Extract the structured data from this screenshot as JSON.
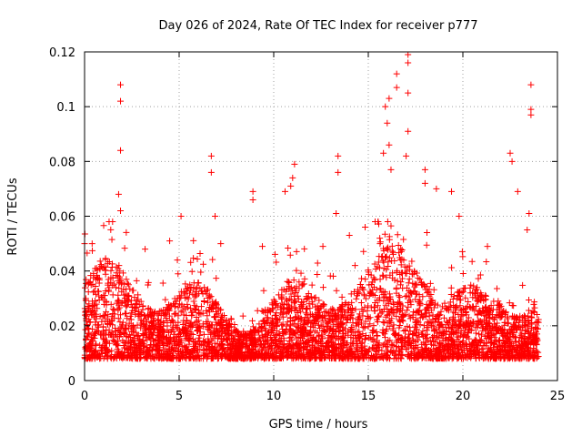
{
  "chart_data": {
    "type": "scatter",
    "title": "Day 026 of 2024, Rate Of TEC Index for receiver p777",
    "xlabel": "GPS time / hours",
    "ylabel": "ROTI / TECUs",
    "xlim": [
      0,
      25
    ],
    "ylim": [
      0,
      0.12
    ],
    "xticks": [
      "0",
      "5",
      "10",
      "15",
      "20",
      "25"
    ],
    "xtick_values": [
      0,
      5,
      10,
      15,
      20,
      25
    ],
    "yticks": [
      "0",
      "0.02",
      "0.04",
      "0.06",
      "0.08",
      "0.1",
      "0.12"
    ],
    "ytick_values": [
      0,
      0.02,
      0.04,
      0.06,
      0.08,
      0.1,
      0.12
    ],
    "grid": true,
    "marker": "+",
    "series_color": "#ff0000",
    "x_data_range": [
      0,
      24
    ],
    "typical_band": [
      0.008,
      0.035
    ],
    "outliers": [
      {
        "x": 1.9,
        "y": 0.108
      },
      {
        "x": 1.9,
        "y": 0.102
      },
      {
        "x": 1.9,
        "y": 0.084
      },
      {
        "x": 1.8,
        "y": 0.068
      },
      {
        "x": 1.9,
        "y": 0.062
      },
      {
        "x": 5.1,
        "y": 0.06
      },
      {
        "x": 6.7,
        "y": 0.082
      },
      {
        "x": 6.7,
        "y": 0.076
      },
      {
        "x": 6.9,
        "y": 0.06
      },
      {
        "x": 8.9,
        "y": 0.069
      },
      {
        "x": 8.9,
        "y": 0.066
      },
      {
        "x": 10.6,
        "y": 0.069
      },
      {
        "x": 11.1,
        "y": 0.079
      },
      {
        "x": 11.0,
        "y": 0.074
      },
      {
        "x": 10.9,
        "y": 0.071
      },
      {
        "x": 13.4,
        "y": 0.082
      },
      {
        "x": 13.4,
        "y": 0.076
      },
      {
        "x": 13.3,
        "y": 0.061
      },
      {
        "x": 15.9,
        "y": 0.1
      },
      {
        "x": 16.1,
        "y": 0.103
      },
      {
        "x": 16.0,
        "y": 0.094
      },
      {
        "x": 16.1,
        "y": 0.086
      },
      {
        "x": 16.2,
        "y": 0.077
      },
      {
        "x": 15.8,
        "y": 0.083
      },
      {
        "x": 16.5,
        "y": 0.112
      },
      {
        "x": 16.5,
        "y": 0.107
      },
      {
        "x": 17.1,
        "y": 0.119
      },
      {
        "x": 17.1,
        "y": 0.116
      },
      {
        "x": 17.1,
        "y": 0.105
      },
      {
        "x": 17.1,
        "y": 0.091
      },
      {
        "x": 17.0,
        "y": 0.082
      },
      {
        "x": 18.0,
        "y": 0.077
      },
      {
        "x": 18.0,
        "y": 0.072
      },
      {
        "x": 18.6,
        "y": 0.07
      },
      {
        "x": 19.4,
        "y": 0.069
      },
      {
        "x": 19.8,
        "y": 0.06
      },
      {
        "x": 22.5,
        "y": 0.083
      },
      {
        "x": 22.6,
        "y": 0.08
      },
      {
        "x": 22.9,
        "y": 0.069
      },
      {
        "x": 23.6,
        "y": 0.108
      },
      {
        "x": 23.6,
        "y": 0.099
      },
      {
        "x": 23.6,
        "y": 0.097
      },
      {
        "x": 23.5,
        "y": 0.061
      },
      {
        "x": 23.4,
        "y": 0.055
      },
      {
        "x": 0.0,
        "y": 0.05
      },
      {
        "x": 0.4,
        "y": 0.05
      },
      {
        "x": 3.2,
        "y": 0.048
      },
      {
        "x": 4.5,
        "y": 0.051
      },
      {
        "x": 7.2,
        "y": 0.05
      },
      {
        "x": 9.4,
        "y": 0.049
      },
      {
        "x": 12.6,
        "y": 0.049
      },
      {
        "x": 14.0,
        "y": 0.053
      },
      {
        "x": 18.1,
        "y": 0.054
      },
      {
        "x": 21.3,
        "y": 0.049
      }
    ]
  }
}
